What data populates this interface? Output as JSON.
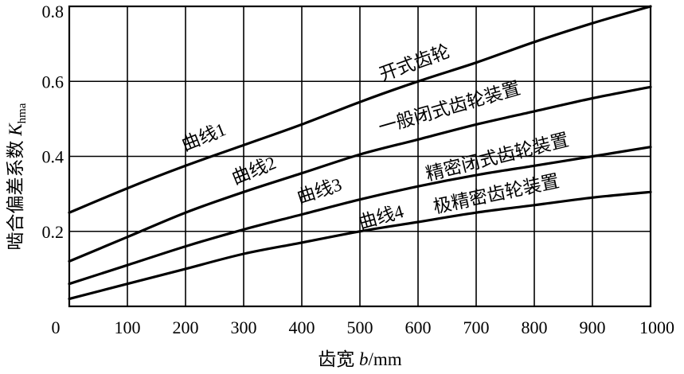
{
  "chart_data": {
    "type": "line",
    "xlabel": {
      "prefix": "齿宽 ",
      "var": "b",
      "unit": "/mm"
    },
    "ylabel": {
      "prefix": "啮合偏差系数 ",
      "var": "K",
      "sub": "hma"
    },
    "xlim": [
      0,
      1000
    ],
    "ylim": [
      0,
      0.8
    ],
    "x_ticks": [
      "0",
      "100",
      "200",
      "300",
      "400",
      "500",
      "600",
      "700",
      "800",
      "900",
      "1000"
    ],
    "y_ticks": [
      {
        "value": 0.2,
        "label": "0.2"
      },
      {
        "value": 0.4,
        "label": "0.4"
      },
      {
        "value": 0.6,
        "label": "0.6"
      },
      {
        "value": 0.8,
        "label": "0.8"
      }
    ],
    "grid": true,
    "series": [
      {
        "name": "开式齿轮",
        "curve_label": "曲线1",
        "x": [
          0,
          100,
          200,
          300,
          400,
          500,
          600,
          700,
          800,
          900,
          1000
        ],
        "values": [
          0.25,
          0.315,
          0.375,
          0.43,
          0.485,
          0.545,
          0.6,
          0.65,
          0.705,
          0.755,
          0.8
        ]
      },
      {
        "name": "一般闭式齿轮装置",
        "curve_label": "曲线2",
        "x": [
          0,
          100,
          200,
          300,
          400,
          500,
          600,
          700,
          800,
          900,
          1000
        ],
        "values": [
          0.12,
          0.185,
          0.25,
          0.305,
          0.355,
          0.405,
          0.445,
          0.485,
          0.52,
          0.555,
          0.585
        ]
      },
      {
        "name": "精密闭式齿轮装置",
        "curve_label": "曲线3",
        "x": [
          0,
          100,
          200,
          300,
          400,
          500,
          600,
          700,
          800,
          900,
          1000
        ],
        "values": [
          0.06,
          0.11,
          0.16,
          0.205,
          0.245,
          0.285,
          0.32,
          0.35,
          0.375,
          0.4,
          0.425
        ]
      },
      {
        "name": "极精密齿轮装置",
        "curve_label": "曲线4",
        "x": [
          0,
          100,
          200,
          300,
          400,
          500,
          600,
          700,
          800,
          900,
          1000
        ],
        "values": [
          0.02,
          0.06,
          0.1,
          0.14,
          0.17,
          0.2,
          0.225,
          0.25,
          0.27,
          0.29,
          0.305
        ]
      }
    ]
  }
}
